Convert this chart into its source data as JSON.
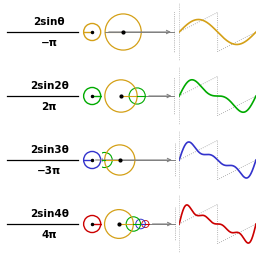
{
  "rows": [
    {
      "label_top": "2sinθ",
      "label_bot": "−π",
      "color": "#d4a017",
      "n_terms": 1,
      "phase_angles_deg": [
        180
      ]
    },
    {
      "label_top": "2sin2θ",
      "label_bot": "2π",
      "color": "#00aa00",
      "n_terms": 2,
      "phase_angles_deg": [
        0,
        0
      ]
    },
    {
      "label_top": "2sin3θ",
      "label_bot": "−3π",
      "color": "#3333cc",
      "n_terms": 3,
      "phase_angles_deg": [
        180,
        180,
        180
      ]
    },
    {
      "label_top": "2sin4θ",
      "label_bot": "4π",
      "color": "#cc0000",
      "n_terms": 4,
      "phase_angles_deg": [
        0,
        0,
        0,
        0
      ]
    }
  ],
  "circle_colors": [
    "#d4a017",
    "#00aa00",
    "#3333cc",
    "#cc0000"
  ],
  "bg_color": "#ffffff"
}
